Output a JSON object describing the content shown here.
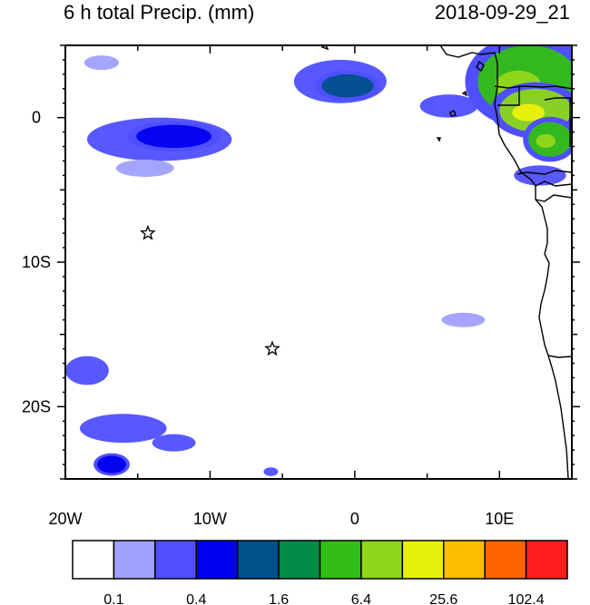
{
  "header": {
    "title": "6 h total Precip. (mm)",
    "datetime": "2018-09-29_21"
  },
  "map": {
    "lon_range": [
      -20,
      15
    ],
    "lat_range": [
      -25,
      5
    ],
    "lon_ticks": [
      {
        "value": -20,
        "label": "20W"
      },
      {
        "value": -10,
        "label": "10W"
      },
      {
        "value": 0,
        "label": "0"
      },
      {
        "value": 10,
        "label": "10E"
      }
    ],
    "lat_ticks": [
      {
        "value": 0,
        "label": "0"
      },
      {
        "value": -10,
        "label": "10S"
      },
      {
        "value": -20,
        "label": "20S"
      }
    ],
    "star_markers": [
      {
        "lon": -14.3,
        "lat": -8.0
      },
      {
        "lon": -5.7,
        "lat": -16.0
      }
    ],
    "precip_regions": [
      {
        "lon": -17.5,
        "lat": 3.8,
        "rx": 1.2,
        "ry": 0.5,
        "level": 1
      },
      {
        "lon": -13.5,
        "lat": -1.5,
        "rx": 5.0,
        "ry": 1.5,
        "level": 2
      },
      {
        "lon": -12.5,
        "lat": -1.3,
        "rx": 2.6,
        "ry": 0.8,
        "level": 3
      },
      {
        "lon": -14.5,
        "lat": -3.5,
        "rx": 2.0,
        "ry": 0.6,
        "level": 1
      },
      {
        "lon": -1.0,
        "lat": 2.5,
        "rx": 3.2,
        "ry": 1.5,
        "level": 2
      },
      {
        "lon": -0.5,
        "lat": 2.2,
        "rx": 1.8,
        "ry": 0.8,
        "level": 4
      },
      {
        "lon": 6.5,
        "lat": 0.8,
        "rx": 2.0,
        "ry": 0.8,
        "level": 2
      },
      {
        "lon": 12.0,
        "lat": 2.5,
        "rx": 3.5,
        "ry": 2.5,
        "level": 6
      },
      {
        "lon": 12.5,
        "lat": 0.5,
        "rx": 2.5,
        "ry": 1.5,
        "level": 7
      },
      {
        "lon": 13.5,
        "lat": -1.5,
        "rx": 1.5,
        "ry": 1.2,
        "level": 6
      },
      {
        "lon": 12.8,
        "lat": -4.0,
        "rx": 1.8,
        "ry": 0.7,
        "level": 2
      },
      {
        "lon": 7.5,
        "lat": -14.0,
        "rx": 1.5,
        "ry": 0.5,
        "level": 1
      },
      {
        "lon": -18.5,
        "lat": -17.5,
        "rx": 1.5,
        "ry": 1.0,
        "level": 2
      },
      {
        "lon": -16.0,
        "lat": -21.5,
        "rx": 3.0,
        "ry": 1.0,
        "level": 2
      },
      {
        "lon": -16.8,
        "lat": -24.0,
        "rx": 1.0,
        "ry": 0.6,
        "level": 3
      },
      {
        "lon": -12.5,
        "lat": -22.5,
        "rx": 1.5,
        "ry": 0.6,
        "level": 2
      },
      {
        "lon": -5.8,
        "lat": -24.5,
        "rx": 0.5,
        "ry": 0.3,
        "level": 2
      }
    ]
  },
  "colorbar": {
    "colors": [
      "#ffffff",
      "#a0a0ff",
      "#4f4fff",
      "#0000f0",
      "#00508c",
      "#008c46",
      "#32be14",
      "#8cd719",
      "#e6f00a",
      "#ffbe00",
      "#ff6400",
      "#ff1e1e"
    ],
    "labels": [
      "0.1",
      "0.4",
      "1.6",
      "6.4",
      "25.6",
      "102.4"
    ]
  }
}
